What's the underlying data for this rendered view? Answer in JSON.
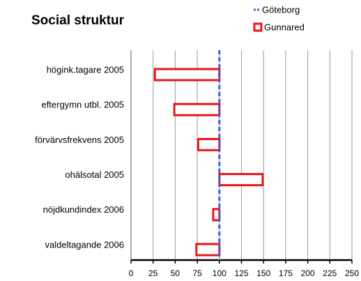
{
  "chart_data": {
    "type": "bar",
    "orientation": "horizontal",
    "title": "Social struktur",
    "categories": [
      "högink.tagare 2005",
      "eftergymn utbl. 2005",
      "förvärvsfrekvens 2005",
      "ohälsotal 2005",
      "nöjdkundindex 2006",
      "valdeltagande 2006"
    ],
    "reference": {
      "name": "Göteborg",
      "color": "#3a5fd9",
      "value": 100
    },
    "series": [
      {
        "name": "Gunnared",
        "color": "#e8151b",
        "values": [
          27,
          49,
          76,
          149,
          93,
          74
        ]
      }
    ],
    "xlim": [
      0,
      250
    ],
    "xticks": [
      0,
      25,
      50,
      75,
      100,
      125,
      150,
      175,
      200,
      225,
      250
    ],
    "grid": true,
    "legend": "top-right"
  }
}
